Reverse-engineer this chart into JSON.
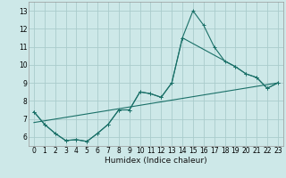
{
  "xlabel": "Humidex (Indice chaleur)",
  "background_color": "#cde8e8",
  "grid_color": "#aacccc",
  "line_color": "#1a7068",
  "xlim": [
    -0.5,
    23.5
  ],
  "ylim": [
    5.5,
    13.5
  ],
  "yticks": [
    6,
    7,
    8,
    9,
    10,
    11,
    12,
    13
  ],
  "xticks": [
    0,
    1,
    2,
    3,
    4,
    5,
    6,
    7,
    8,
    9,
    10,
    11,
    12,
    13,
    14,
    15,
    16,
    17,
    18,
    19,
    20,
    21,
    22,
    23
  ],
  "series1_x": [
    0,
    1,
    2,
    3,
    4,
    5,
    6,
    7,
    8,
    9,
    10,
    11,
    12,
    13,
    14,
    15,
    16,
    17,
    18,
    19,
    20,
    21,
    22,
    23
  ],
  "series1_y": [
    7.4,
    6.7,
    6.2,
    5.8,
    5.85,
    5.75,
    6.2,
    6.7,
    7.5,
    7.5,
    8.5,
    8.4,
    8.2,
    9.0,
    11.5,
    13.0,
    12.2,
    11.0,
    10.2,
    9.9,
    9.5,
    9.3,
    8.7,
    9.0
  ],
  "series2_x": [
    0,
    1,
    2,
    3,
    4,
    5,
    6,
    7,
    8,
    9,
    10,
    11,
    12,
    13,
    14,
    19,
    20,
    21,
    22,
    23
  ],
  "series2_y": [
    7.4,
    6.7,
    6.2,
    5.8,
    5.85,
    5.75,
    6.2,
    6.7,
    7.5,
    7.5,
    8.5,
    8.4,
    8.2,
    9.0,
    11.5,
    9.9,
    9.5,
    9.3,
    8.7,
    9.0
  ],
  "series3_x": [
    0,
    23
  ],
  "series3_y": [
    6.8,
    9.0
  ],
  "xlabel_fontsize": 6.5,
  "tick_fontsize": 5.5
}
